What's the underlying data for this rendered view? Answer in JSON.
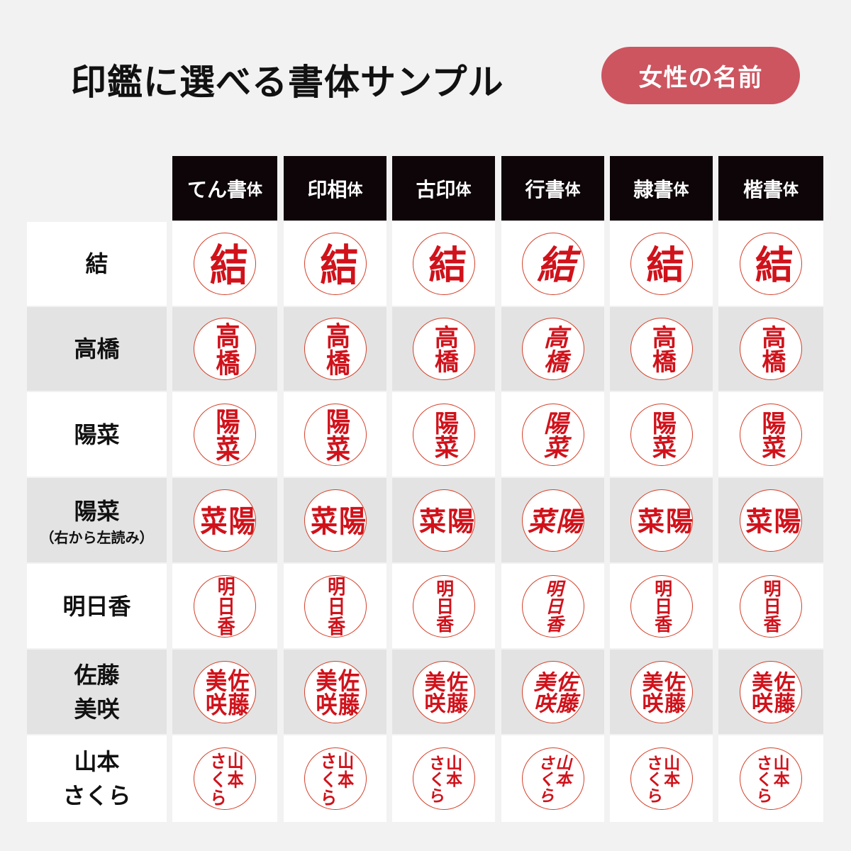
{
  "title": "印鑑に選べる書体サンプル",
  "badge": "女性の名前",
  "colors": {
    "badge": "#cc5560",
    "stamp_red": "#d0121b",
    "header_bg": "#0d0507"
  },
  "fonts": [
    {
      "main": "てん書",
      "suffix": "体"
    },
    {
      "main": "印相",
      "suffix": "体"
    },
    {
      "main": "古印",
      "suffix": "体"
    },
    {
      "main": "行書",
      "suffix": "体"
    },
    {
      "main": "隷書",
      "suffix": "体"
    },
    {
      "main": "楷書",
      "suffix": "体"
    }
  ],
  "rows": [
    {
      "label": [
        "結"
      ],
      "sub": "",
      "stamp": [
        "結"
      ]
    },
    {
      "label": [
        "高橋"
      ],
      "sub": "",
      "stamp": [
        "高橋"
      ]
    },
    {
      "label": [
        "陽菜"
      ],
      "sub": "",
      "stamp": [
        "陽菜"
      ]
    },
    {
      "label": [
        "陽菜"
      ],
      "sub": "（右から左読み）",
      "stamp": [
        "陽",
        "菜"
      ]
    },
    {
      "label": [
        "明日香"
      ],
      "sub": "",
      "stamp": [
        "明日香"
      ]
    },
    {
      "label": [
        "佐藤",
        "美咲"
      ],
      "sub": "",
      "stamp": [
        "佐藤",
        "美咲"
      ]
    },
    {
      "label": [
        "山本",
        "さくら"
      ],
      "sub": "",
      "stamp": [
        "山本",
        "さくら"
      ]
    }
  ]
}
